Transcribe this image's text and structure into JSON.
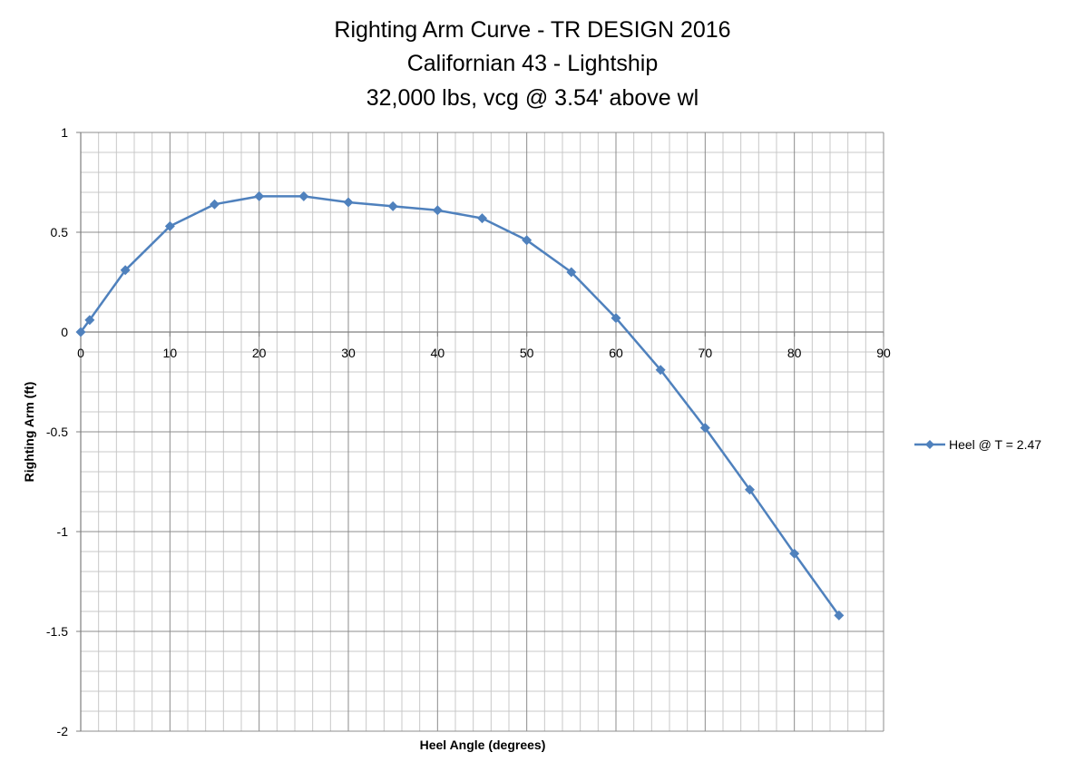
{
  "chart_data": {
    "type": "line",
    "title_lines": [
      "Righting Arm Curve - TR DESIGN 2016",
      "Californian 43 - Lightship",
      "32,000 lbs, vcg @ 3.54' above wl"
    ],
    "xlabel": "Heel Angle (degrees)",
    "ylabel": "Righting Arm (ft)",
    "xlim": [
      0,
      90
    ],
    "ylim": [
      -2,
      1
    ],
    "x_ticks": [
      0,
      10,
      20,
      30,
      40,
      50,
      60,
      70,
      80,
      90
    ],
    "y_ticks": [
      1,
      0.5,
      0,
      -0.5,
      -1,
      -1.5,
      -2
    ],
    "x_tick_labels": [
      "0",
      "10",
      "20",
      "30",
      "40",
      "50",
      "60",
      "70",
      "80",
      "90"
    ],
    "y_tick_labels": [
      "1",
      "0.5",
      "0",
      "-0.5",
      "-1",
      "-1.5",
      "-2"
    ],
    "minor_grid_x": 2,
    "minor_grid_y": 0.1,
    "grid": true,
    "legend_position": "right",
    "series": [
      {
        "name": "Heel @ T = 2.47",
        "color": "#4f81bd",
        "marker": "diamond",
        "x": [
          0,
          1,
          5,
          10,
          15,
          20,
          25,
          30,
          35,
          40,
          45,
          50,
          55,
          60,
          65,
          70,
          75,
          80,
          85
        ],
        "y": [
          0,
          0.06,
          0.31,
          0.53,
          0.64,
          0.68,
          0.68,
          0.65,
          0.63,
          0.61,
          0.57,
          0.46,
          0.3,
          0.07,
          -0.19,
          -0.48,
          -0.79,
          -1.11,
          -1.42
        ]
      }
    ]
  }
}
